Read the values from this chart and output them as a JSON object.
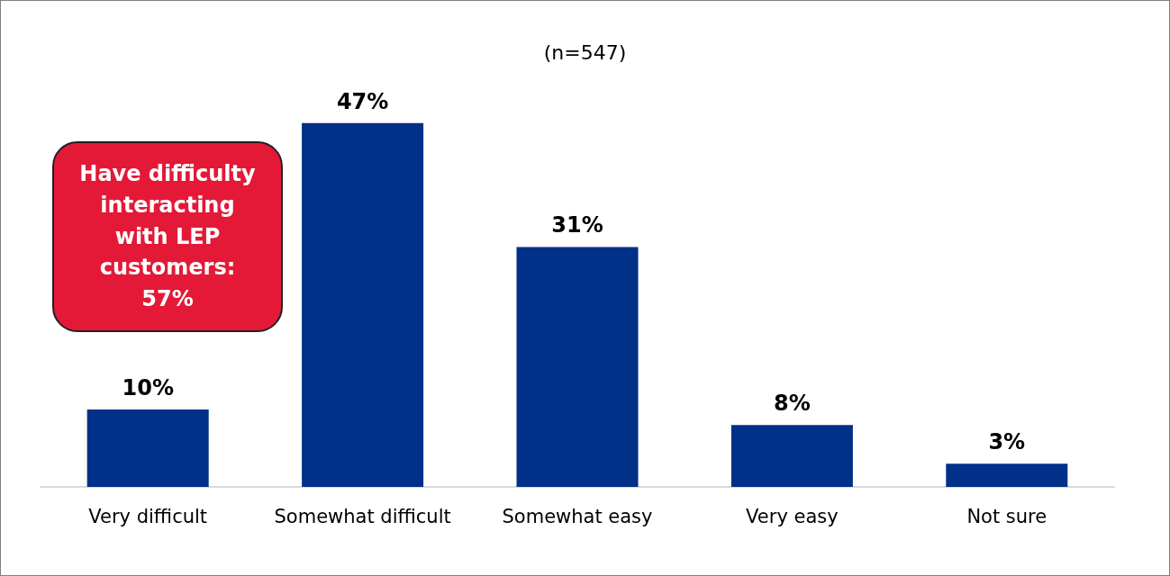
{
  "chart_data": {
    "type": "bar",
    "title": "(n=547)",
    "categories": [
      "Very difficult",
      "Somewhat difficult",
      "Somewhat easy",
      "Very easy",
      "Not sure"
    ],
    "values": [
      10,
      47,
      31,
      8,
      3
    ],
    "value_labels": [
      "10%",
      "47%",
      "31%",
      "8%",
      "3%"
    ],
    "color": "#003087",
    "annotations": [
      "Have difficulty interacting with LEP customers: 57%"
    ]
  }
}
